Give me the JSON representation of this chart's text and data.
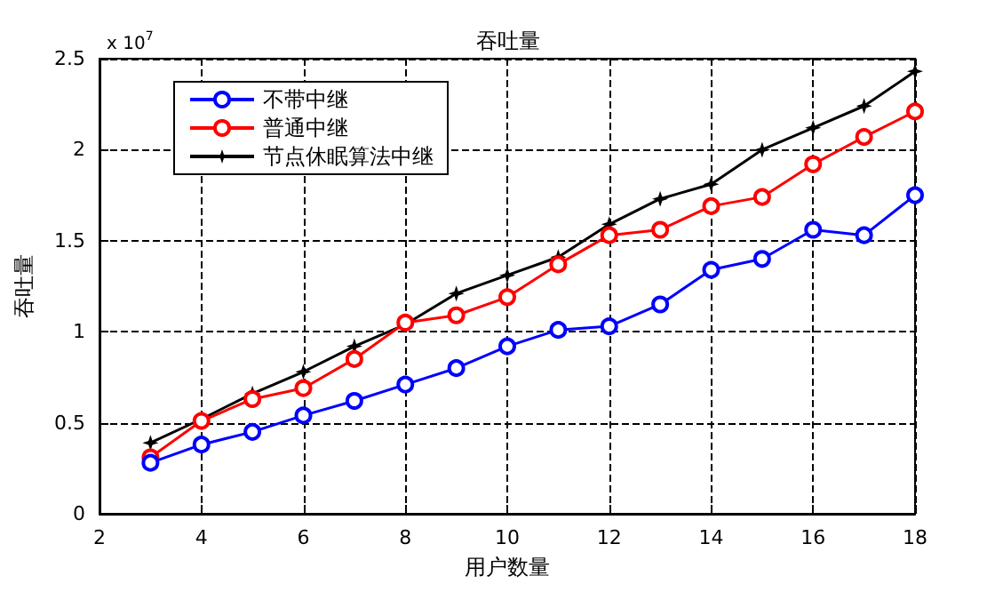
{
  "chart_data": {
    "type": "line",
    "title": "吞吐量",
    "xlabel": "用户数量",
    "ylabel": "吞吐量",
    "annotations": [
      "x 10$^{7}$"
    ],
    "x": [
      3,
      4,
      5,
      6,
      7,
      8,
      9,
      10,
      11,
      12,
      13,
      14,
      15,
      16,
      17,
      18
    ],
    "series": [
      {
        "name": "不带中继",
        "color": "#0000ff",
        "marker": "circle",
        "values": [
          0.28,
          0.38,
          0.45,
          0.54,
          0.62,
          0.71,
          0.8,
          0.92,
          1.01,
          1.03,
          1.15,
          1.34,
          1.4,
          1.56,
          1.53,
          1.75
        ]
      },
      {
        "name": "普通中继",
        "color": "#ff0000",
        "marker": "circle",
        "values": [
          0.31,
          0.51,
          0.63,
          0.69,
          0.85,
          1.05,
          1.09,
          1.19,
          1.37,
          1.53,
          1.56,
          1.69,
          1.74,
          1.92,
          2.07,
          2.21
        ]
      },
      {
        "name": "节点休眠算法中继",
        "color": "#000000",
        "marker": "star",
        "values": [
          0.39,
          0.52,
          0.66,
          0.78,
          0.92,
          1.04,
          1.21,
          1.31,
          1.41,
          1.59,
          1.73,
          1.81,
          2.0,
          2.12,
          2.24,
          2.43
        ]
      }
    ],
    "xlim": [
      2,
      18
    ],
    "xticks": [
      2,
      4,
      6,
      8,
      10,
      12,
      14,
      16,
      18
    ],
    "ylim": [
      0,
      2.5
    ],
    "yticks": [
      0,
      0.5,
      1,
      1.5,
      2,
      2.5
    ],
    "grid": true,
    "legend": "top left",
    "line_style": "solid"
  }
}
